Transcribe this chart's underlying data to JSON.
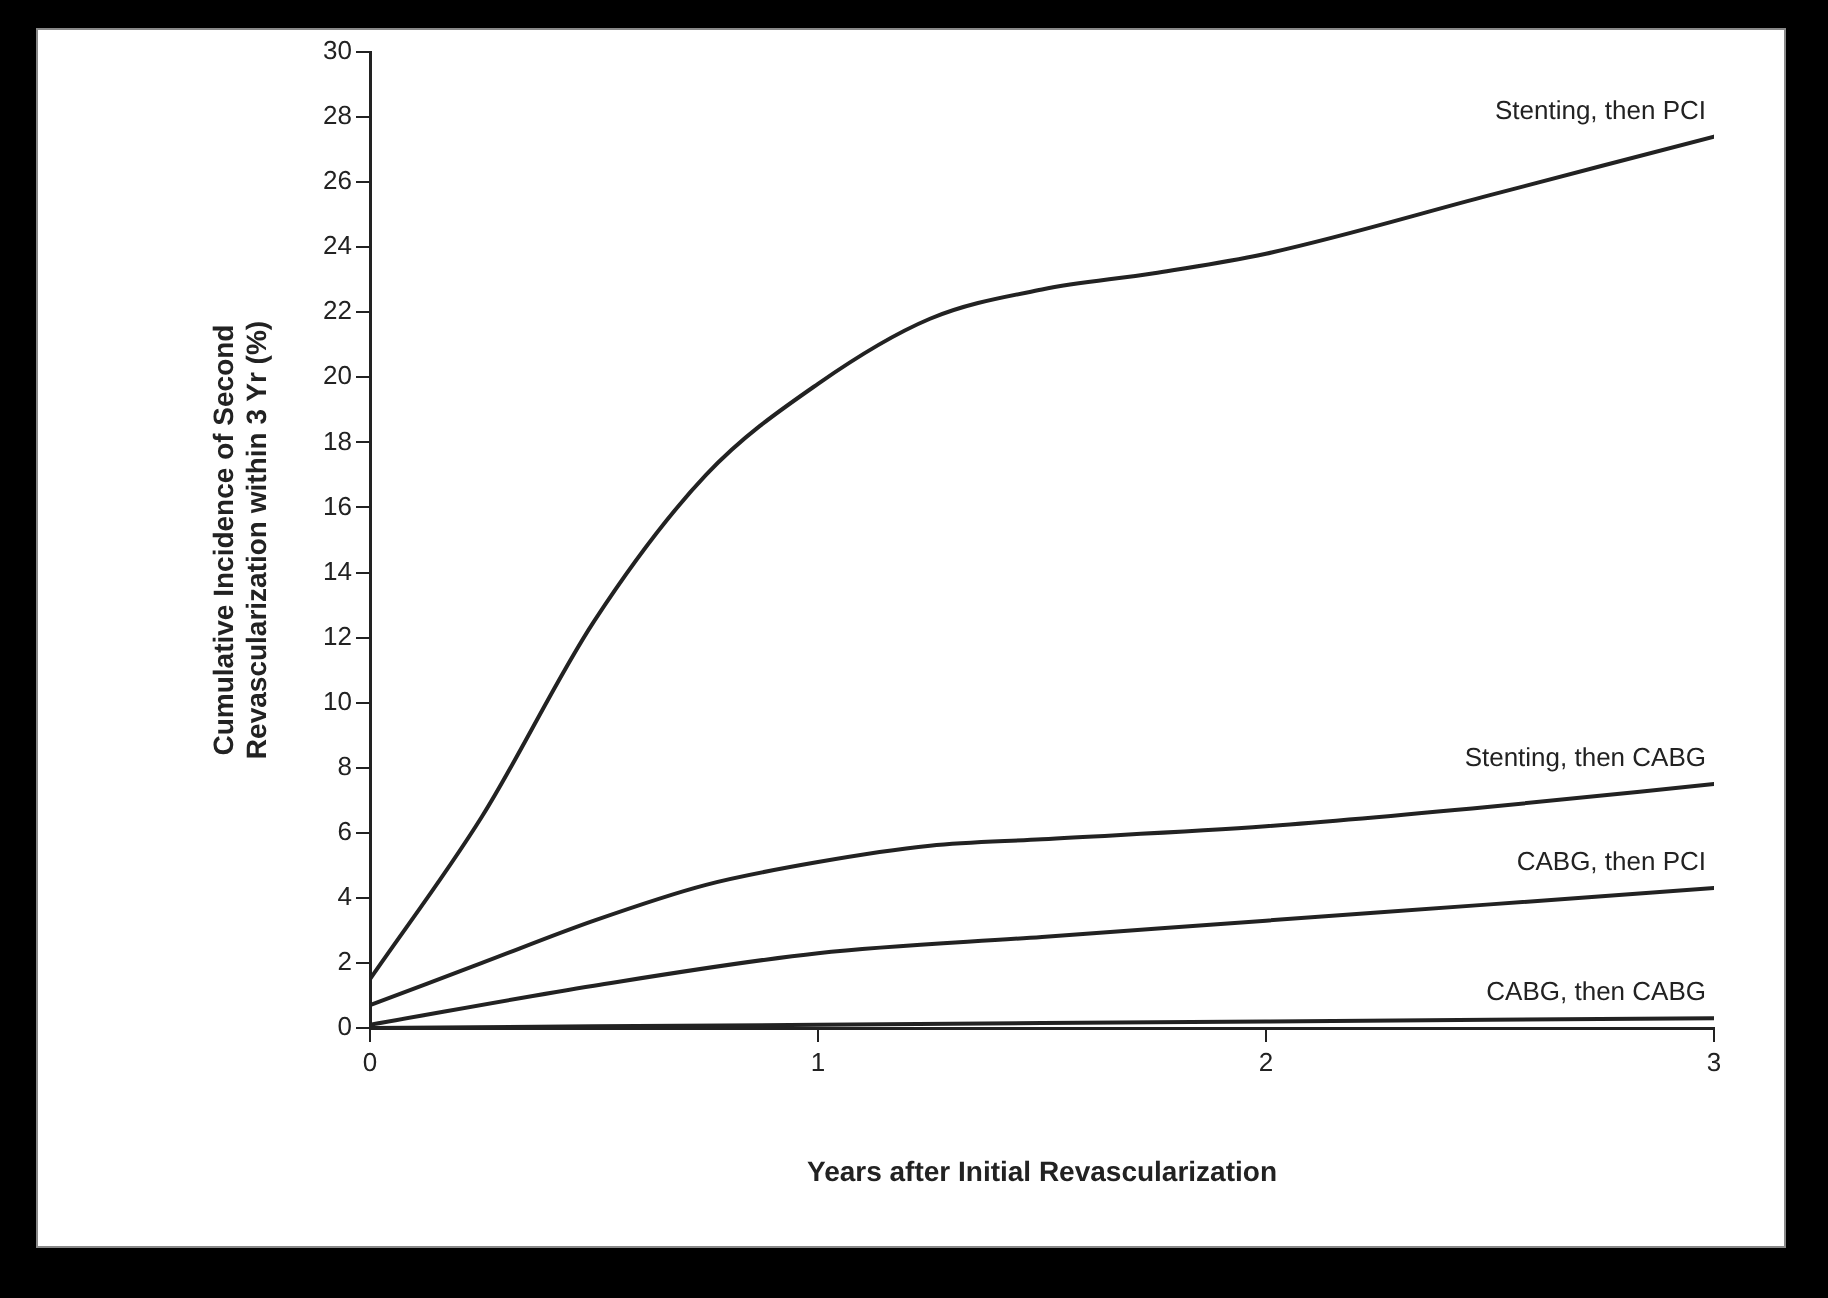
{
  "chart_data": {
    "type": "line",
    "xlabel": "Years after Initial Revascularization",
    "ylabel": "Cumulative Incidence of Second\nRevascularization within 3 Yr (%)",
    "xlim": [
      0,
      3
    ],
    "xticks": [
      0,
      1,
      2,
      3
    ],
    "ylim": [
      0,
      30
    ],
    "yticks": [
      0,
      2,
      4,
      6,
      8,
      10,
      12,
      14,
      16,
      18,
      20,
      22,
      24,
      26,
      28,
      30
    ],
    "marker": "none",
    "line_style": "solid",
    "legend": false,
    "series": [
      {
        "name": "Stenting, then PCI",
        "color": "#222222",
        "x": [
          0,
          0.25,
          0.5,
          0.75,
          1,
          1.25,
          1.5,
          1.75,
          2,
          2.5,
          3
        ],
        "values": [
          1.5,
          6.5,
          12.5,
          17,
          19.8,
          21.8,
          22.7,
          23.2,
          23.8,
          25.6,
          27.4
        ]
      },
      {
        "name": "Stenting, then CABG",
        "color": "#222222",
        "x": [
          0,
          0.25,
          0.5,
          0.75,
          1,
          1.25,
          1.5,
          2,
          2.5,
          3
        ],
        "values": [
          0.7,
          2,
          3.3,
          4.4,
          5.1,
          5.6,
          5.8,
          6.2,
          6.8,
          7.5
        ]
      },
      {
        "name": "CABG, then PCI",
        "color": "#222222",
        "x": [
          0,
          0.5,
          1,
          1.5,
          2,
          2.5,
          3
        ],
        "values": [
          0.1,
          1.3,
          2.3,
          2.8,
          3.3,
          3.8,
          4.3
        ]
      },
      {
        "name": "CABG, then CABG",
        "color": "#222222",
        "x": [
          0,
          1,
          2,
          3
        ],
        "values": [
          0,
          0.1,
          0.2,
          0.3
        ]
      }
    ]
  }
}
